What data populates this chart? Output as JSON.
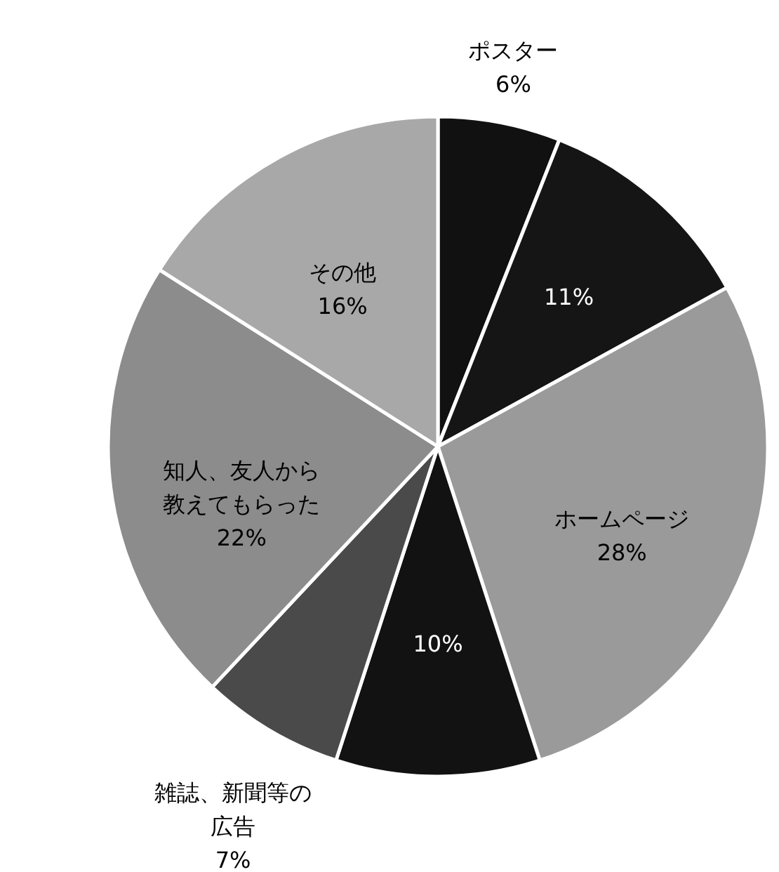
{
  "chart_data": {
    "type": "pie",
    "categories": [
      "ポスター",
      null,
      "ホームページ",
      null,
      "雑誌、新聞等の広告",
      "知人、友人から教えてもらった",
      "その他"
    ],
    "values": [
      6,
      11,
      28,
      10,
      7,
      22,
      16
    ],
    "value_labels": [
      "6%",
      "11%",
      "28%",
      "10%",
      "7%",
      "22%",
      "16%"
    ],
    "colors": [
      "#111111",
      "#151515",
      "#9a9a9a",
      "#121212",
      "#4a4a4a",
      "#8c8c8c",
      "#a8a8a8"
    ]
  }
}
